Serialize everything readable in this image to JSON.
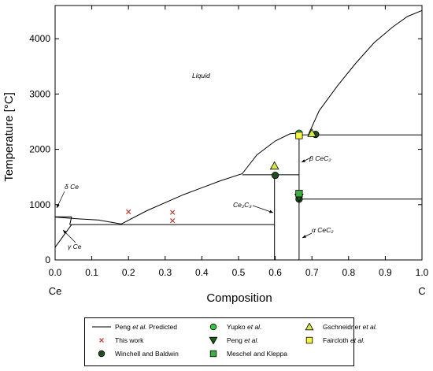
{
  "chart_data": {
    "type": "line",
    "xlabel": "Composition",
    "ylabel": "Temperature [°C]",
    "xlim": [
      0.0,
      1.0
    ],
    "ylim": [
      0,
      4600
    ],
    "xticks": [
      "0.0",
      "0.1",
      "0.2",
      "0.3",
      "0.4",
      "0.5",
      "0.6",
      "0.7",
      "0.8",
      "0.9",
      "1.0"
    ],
    "yticks": [
      "0",
      "1000",
      "2000",
      "3000",
      "4000"
    ],
    "end_labels": {
      "left": "Ce",
      "right": "C"
    },
    "grid": false,
    "phase_labels": {
      "liquid": "Liquid",
      "delta_ce": "δ Ce",
      "gamma_ce": "γ Ce",
      "ce2c3": "Ce₂C₃",
      "beta_cec2": "β CeC₂",
      "alpha_cec2": "α CeC₂"
    },
    "series": [
      {
        "name": "Peng et al. Predicted",
        "kind": "line",
        "color": "#000000",
        "segments": [
          {
            "x": [
              0.0,
              0.06,
              0.12,
              0.18
            ],
            "y": [
              775,
              745,
              720,
              650
            ]
          },
          {
            "x": [
              0.18,
              0.25,
              0.35,
              0.45,
              0.51,
              0.55,
              0.6,
              0.64,
              0.67
            ],
            "y": [
              650,
              890,
              1180,
              1430,
              1560,
              1900,
              2150,
              2280,
              2300
            ]
          },
          {
            "x": [
              0.69,
              0.72,
              0.77,
              0.82,
              0.87,
              0.92,
              0.96,
              1.0
            ],
            "y": [
              2260,
              2700,
              3150,
              3560,
              3930,
              4210,
              4400,
              4510
            ]
          },
          {
            "x": [
              0.51,
              0.6
            ],
            "y": [
              1540,
              1540
            ]
          },
          {
            "x": [
              0.6,
              0.665
            ],
            "y": [
              1540,
              1540
            ]
          },
          {
            "x": [
              0.665,
              1.0
            ],
            "y": [
              2260,
              2260
            ]
          },
          {
            "x": [
              0.665,
              1.0
            ],
            "y": [
              1100,
              1100
            ]
          },
          {
            "x": [
              0.04,
              0.598
            ],
            "y": [
              640,
              640
            ]
          },
          {
            "x": [
              0.598,
              0.598
            ],
            "y": [
              0,
              1540
            ]
          },
          {
            "x": [
              0.665,
              0.665
            ],
            "y": [
              0,
              2300
            ]
          },
          {
            "x": [
              0.0,
              0.045
            ],
            "y": [
              780,
              780
            ]
          },
          {
            "x": [
              0.0,
              0.045
            ],
            "y": [
              230,
              640
            ]
          },
          {
            "x": [
              0.045,
              0.04
            ],
            "y": [
              780,
              640
            ]
          }
        ]
      },
      {
        "name": "This work",
        "kind": "marker",
        "marker": "x",
        "color": "#c0392b",
        "x": [
          0.2,
          0.32,
          0.32
        ],
        "y": [
          870,
          860,
          710
        ]
      },
      {
        "name": "Winchell and Baldwin",
        "kind": "marker",
        "marker": "circle",
        "color": "#1e4d1e",
        "x": [
          0.6,
          0.665,
          0.71
        ],
        "y": [
          1530,
          1100,
          2270
        ]
      },
      {
        "name": "Yupko et al.",
        "kind": "marker",
        "marker": "circle",
        "color": "#2ecc40",
        "x": [
          0.665
        ],
        "y": [
          2290
        ]
      },
      {
        "name": "Peng et al.",
        "kind": "marker",
        "marker": "triangle-down",
        "color": "#1e5a1e",
        "x": [
          0.665
        ],
        "y": [
          1130
        ]
      },
      {
        "name": "Meschel and Kleppa",
        "kind": "marker",
        "marker": "square",
        "color": "#3cb043",
        "x": [
          0.665
        ],
        "y": [
          1200
        ]
      },
      {
        "name": "Gschneidner et al.",
        "kind": "marker",
        "marker": "triangle-up",
        "color": "#d4e84a",
        "x": [
          0.598,
          0.7
        ],
        "y": [
          1700,
          2290
        ]
      },
      {
        "name": "Faircloth et al.",
        "kind": "marker",
        "marker": "square",
        "color": "#f5f542",
        "x": [
          0.665
        ],
        "y": [
          2250
        ]
      }
    ]
  },
  "legend": {
    "items": [
      {
        "sym": "line",
        "color": "#000000",
        "pre": "Peng ",
        "em": "et al.",
        "post": " Predicted"
      },
      {
        "sym": "circle",
        "color": "#2ecc40",
        "pre": "Yupko ",
        "em": "et al.",
        "post": ""
      },
      {
        "sym": "triangle-up",
        "color": "#d4e84a",
        "pre": "Gschneidner ",
        "em": "et al.",
        "post": ""
      },
      {
        "sym": "x",
        "color": "#c0392b",
        "pre": "This work",
        "em": "",
        "post": ""
      },
      {
        "sym": "triangle-down",
        "color": "#1e5a1e",
        "pre": "Peng ",
        "em": "et al.",
        "post": ""
      },
      {
        "sym": "square",
        "color": "#f5f542",
        "pre": "Faircloth ",
        "em": "et al.",
        "post": ""
      },
      {
        "sym": "circle",
        "color": "#1e4d1e",
        "pre": "Winchell and Baldwin",
        "em": "",
        "post": ""
      },
      {
        "sym": "square",
        "color": "#3cb043",
        "pre": "Meschel and Kleppa",
        "em": "",
        "post": ""
      }
    ]
  }
}
